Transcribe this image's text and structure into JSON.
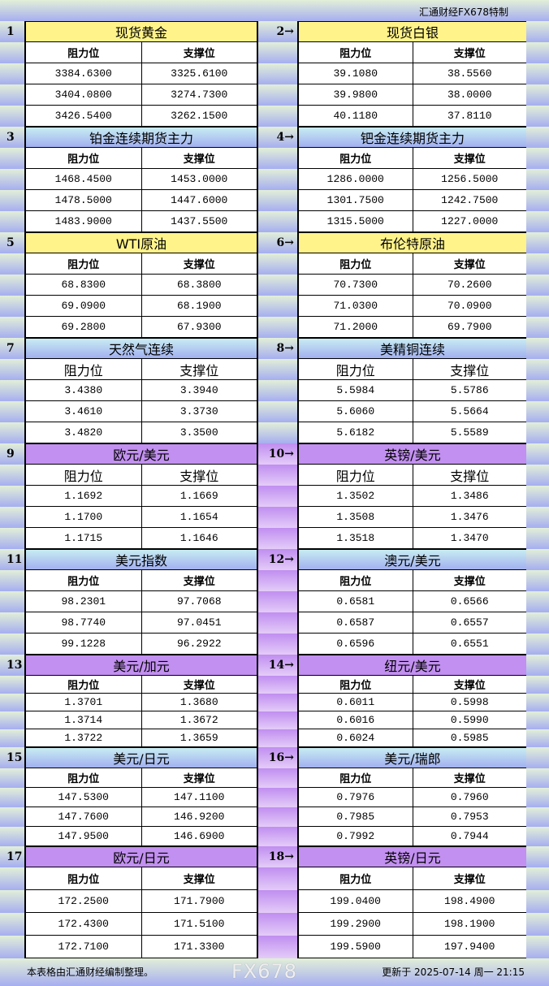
{
  "brand": "汇通财经FX678特制",
  "labels": {
    "resistance": "阻力位",
    "support": "支撑位"
  },
  "colors": {
    "yellow": "#fff38a",
    "blue": "#a2b0f0",
    "purple": "#c290f0"
  },
  "sections": [
    {
      "header_color": "yellow",
      "left": {
        "num": "1",
        "title": "现货黄金",
        "resistance": [
          "3384.6300",
          "3404.0800",
          "3426.5400"
        ],
        "support": [
          "3325.6100",
          "3274.7300",
          "3262.1500"
        ]
      },
      "right": {
        "num": "2→",
        "title": "现货白银",
        "resistance": [
          "39.1080",
          "39.9800",
          "40.1180"
        ],
        "support": [
          "38.5560",
          "38.0000",
          "37.8110"
        ]
      }
    },
    {
      "header_color": "blue",
      "left": {
        "num": "3",
        "title": "铂金连续期货主力",
        "resistance": [
          "1468.4500",
          "1478.5000",
          "1483.9000"
        ],
        "support": [
          "1453.0000",
          "1447.6000",
          "1437.5500"
        ]
      },
      "right": {
        "num": "4→",
        "title": "钯金连续期货主力",
        "resistance": [
          "1286.0000",
          "1301.7500",
          "1315.5000"
        ],
        "support": [
          "1256.5000",
          "1242.7500",
          "1227.0000"
        ]
      }
    },
    {
      "header_color": "yellow",
      "left": {
        "num": "5",
        "title": "WTI原油",
        "resistance": [
          "68.8300",
          "69.0900",
          "69.2800"
        ],
        "support": [
          "68.3800",
          "68.1900",
          "67.9300"
        ]
      },
      "right": {
        "num": "6→",
        "title": "布伦特原油",
        "resistance": [
          "70.7300",
          "71.0300",
          "71.2000"
        ],
        "support": [
          "70.2600",
          "70.0900",
          "69.7900"
        ]
      }
    },
    {
      "header_color": "blue",
      "left": {
        "num": "7",
        "title": "天然气连续",
        "resistance": [
          "3.4380",
          "3.4610",
          "3.4820"
        ],
        "support": [
          "3.3940",
          "3.3730",
          "3.3500"
        ]
      },
      "right": {
        "num": "8→",
        "title": "美精铜连续",
        "resistance": [
          "5.5984",
          "5.6060",
          "5.6182"
        ],
        "support": [
          "5.5786",
          "5.5664",
          "5.5589"
        ]
      }
    },
    {
      "header_color": "purple",
      "left": {
        "num": "9",
        "title": "欧元/美元",
        "resistance": [
          "1.1692",
          "1.1700",
          "1.1715"
        ],
        "support": [
          "1.1669",
          "1.1654",
          "1.1646"
        ]
      },
      "right": {
        "num": "10→",
        "title": "英镑/美元",
        "resistance": [
          "1.3502",
          "1.3508",
          "1.3518"
        ],
        "support": [
          "1.3486",
          "1.3476",
          "1.3470"
        ]
      }
    },
    {
      "header_color": "blue",
      "left": {
        "num": "11",
        "title": "美元指数",
        "resistance": [
          "98.2301",
          "98.7740",
          "99.1228"
        ],
        "support": [
          "97.7068",
          "97.0451",
          "96.2922"
        ]
      },
      "right": {
        "num": "12→",
        "title": "澳元/美元",
        "resistance": [
          "0.6581",
          "0.6587",
          "0.6596"
        ],
        "support": [
          "0.6566",
          "0.6557",
          "0.6551"
        ]
      }
    },
    {
      "header_color": "purple",
      "left": {
        "num": "13",
        "title": "美元/加元",
        "resistance": [
          "1.3701",
          "1.3714",
          "1.3722"
        ],
        "support": [
          "1.3680",
          "1.3672",
          "1.3659"
        ]
      },
      "right": {
        "num": "14→",
        "title": "纽元/美元",
        "resistance": [
          "0.6011",
          "0.6016",
          "0.6024"
        ],
        "support": [
          "0.5998",
          "0.5990",
          "0.5985"
        ]
      }
    },
    {
      "header_color": "blue",
      "left": {
        "num": "15",
        "title": "美元/日元",
        "resistance": [
          "147.5300",
          "147.7600",
          "147.9500"
        ],
        "support": [
          "147.1100",
          "146.9200",
          "146.6900"
        ]
      },
      "right": {
        "num": "16→",
        "title": "美元/瑞郎",
        "resistance": [
          "0.7976",
          "0.7985",
          "0.7992"
        ],
        "support": [
          "0.7960",
          "0.7953",
          "0.7944"
        ]
      }
    },
    {
      "header_color": "purple",
      "left": {
        "num": "17",
        "title": "欧元/日元",
        "resistance": [
          "172.2500",
          "172.4300",
          "172.7100"
        ],
        "support": [
          "171.7900",
          "171.5100",
          "171.3300"
        ]
      },
      "right": {
        "num": "18→",
        "title": "英镑/日元",
        "resistance": [
          "199.0400",
          "199.2900",
          "199.5900"
        ],
        "support": [
          "198.4900",
          "198.1900",
          "197.9400"
        ]
      }
    }
  ],
  "footer": {
    "note": "本表格由汇通财经编制整理。",
    "updated": "更新于 2025-07-14 周一 21:15"
  },
  "watermark": "FX678"
}
